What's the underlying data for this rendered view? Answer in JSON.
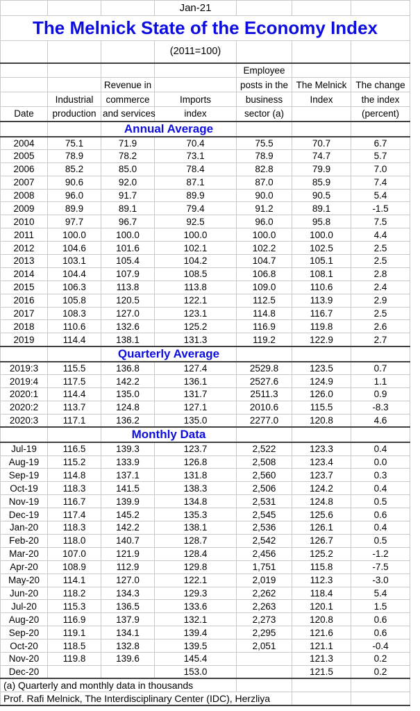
{
  "header": {
    "date_label": "Jan-21",
    "title": "The Melnick State of the Economy Index",
    "subtitle": "(2011=100)"
  },
  "columns": {
    "lines": [
      [
        "",
        "",
        "",
        "",
        "Employee",
        "",
        ""
      ],
      [
        "",
        "",
        "Revenue in",
        "",
        "posts in the",
        "The Melnick",
        "The change"
      ],
      [
        "",
        "Industrial",
        "commerce",
        "Imports",
        "business",
        "Index",
        "the index"
      ],
      [
        "Date",
        "production",
        "and services",
        "index",
        "sector (a)",
        "",
        "(percent)"
      ]
    ]
  },
  "sections": [
    {
      "label": "Annual Average",
      "rows": [
        [
          "2004",
          "75.1",
          "71.9",
          "70.4",
          "75.5",
          "70.7",
          "6.7"
        ],
        [
          "2005",
          "78.9",
          "78.2",
          "73.1",
          "78.9",
          "74.7",
          "5.7"
        ],
        [
          "2006",
          "85.2",
          "85.0",
          "78.4",
          "82.8",
          "79.9",
          "7.0"
        ],
        [
          "2007",
          "90.6",
          "92.0",
          "87.1",
          "87.0",
          "85.9",
          "7.4"
        ],
        [
          "2008",
          "96.0",
          "91.7",
          "89.9",
          "90.0",
          "90.5",
          "5.4"
        ],
        [
          "2009",
          "89.9",
          "89.1",
          "79.4",
          "91.2",
          "89.1",
          "-1.5"
        ],
        [
          "2010",
          "97.7",
          "96.7",
          "92.5",
          "96.0",
          "95.8",
          "7.5"
        ],
        [
          "2011",
          "100.0",
          "100.0",
          "100.0",
          "100.0",
          "100.0",
          "4.4"
        ],
        [
          "2012",
          "104.6",
          "101.6",
          "102.1",
          "102.2",
          "102.5",
          "2.5"
        ],
        [
          "2013",
          "103.1",
          "105.4",
          "104.2",
          "104.7",
          "105.1",
          "2.5"
        ],
        [
          "2014",
          "104.4",
          "107.9",
          "108.5",
          "106.8",
          "108.1",
          "2.8"
        ],
        [
          "2015",
          "106.3",
          "113.8",
          "113.8",
          "109.0",
          "110.6",
          "2.4"
        ],
        [
          "2016",
          "105.8",
          "120.5",
          "122.1",
          "112.5",
          "113.9",
          "2.9"
        ],
        [
          "2017",
          "108.3",
          "127.0",
          "123.1",
          "114.8",
          "116.7",
          "2.5"
        ],
        [
          "2018",
          "110.6",
          "132.6",
          "125.2",
          "116.9",
          "119.8",
          "2.6"
        ],
        [
          "2019",
          "114.4",
          "138.1",
          "131.3",
          "119.2",
          "122.9",
          "2.7"
        ]
      ]
    },
    {
      "label": "Quarterly Average",
      "rows": [
        [
          "2019:3",
          "115.5",
          "136.8",
          "127.4",
          "2529.8",
          "123.5",
          "0.7"
        ],
        [
          "2019:4",
          "117.5",
          "142.2",
          "136.1",
          "2527.6",
          "124.9",
          "1.1"
        ],
        [
          "2020:1",
          "114.4",
          "135.0",
          "131.7",
          "2511.3",
          "126.0",
          "0.9"
        ],
        [
          "2020:2",
          "113.7",
          "124.8",
          "127.1",
          "2010.6",
          "115.5",
          "-8.3"
        ],
        [
          "2020:3",
          "117.1",
          "136.2",
          "135.0",
          "2277.0",
          "120.8",
          "4.6"
        ]
      ]
    },
    {
      "label": "Monthly Data",
      "rows": [
        [
          "Jul-19",
          "116.5",
          "139.3",
          "123.7",
          "2,522",
          "123.3",
          "0.4"
        ],
        [
          "Aug-19",
          "115.2",
          "133.9",
          "126.8",
          "2,508",
          "123.4",
          "0.0"
        ],
        [
          "Sep-19",
          "114.8",
          "137.1",
          "131.8",
          "2,560",
          "123.7",
          "0.3"
        ],
        [
          "Oct-19",
          "118.3",
          "141.5",
          "138.3",
          "2,506",
          "124.2",
          "0.4"
        ],
        [
          "Nov-19",
          "116.7",
          "139.9",
          "134.8",
          "2,531",
          "124.8",
          "0.5"
        ],
        [
          "Dec-19",
          "117.4",
          "145.2",
          "135.3",
          "2,545",
          "125.6",
          "0.6"
        ],
        [
          "Jan-20",
          "118.3",
          "142.2",
          "138.1",
          "2,536",
          "126.1",
          "0.4"
        ],
        [
          "Feb-20",
          "118.0",
          "140.7",
          "128.7",
          "2,542",
          "126.7",
          "0.5"
        ],
        [
          "Mar-20",
          "107.0",
          "121.9",
          "128.4",
          "2,456",
          "125.2",
          "-1.2"
        ],
        [
          "Apr-20",
          "108.9",
          "112.9",
          "129.8",
          "1,751",
          "115.8",
          "-7.5"
        ],
        [
          "May-20",
          "114.1",
          "127.0",
          "122.1",
          "2,019",
          "112.3",
          "-3.0"
        ],
        [
          "Jun-20",
          "118.2",
          "134.3",
          "129.3",
          "2,262",
          "118.4",
          "5.4"
        ],
        [
          "Jul-20",
          "115.3",
          "136.5",
          "133.6",
          "2,263",
          "120.1",
          "1.5"
        ],
        [
          "Aug-20",
          "116.9",
          "137.9",
          "132.1",
          "2,273",
          "120.8",
          "0.6"
        ],
        [
          "Sep-20",
          "119.1",
          "134.1",
          "139.4",
          "2,295",
          "121.6",
          "0.6"
        ],
        [
          "Oct-20",
          "118.5",
          "132.8",
          "139.5",
          "2,051",
          "121.1",
          "-0.4"
        ],
        [
          "Nov-20",
          "119.8",
          "139.6",
          "145.4",
          "",
          "121.3",
          "0.2"
        ],
        [
          "Dec-20",
          "",
          "",
          "153.0",
          "",
          "121.5",
          "0.2"
        ]
      ]
    }
  ],
  "footnotes": [
    "(a) Quarterly and monthly data in thousands",
    "Prof. Rafi Melnick, The Interdisciplinary Center (IDC), Herzliya"
  ],
  "colors": {
    "accent": "#0d0de0",
    "gridline": "#c9c9c9",
    "dark_border": "#3f3f3f",
    "text": "#000000",
    "background": "#ffffff"
  }
}
